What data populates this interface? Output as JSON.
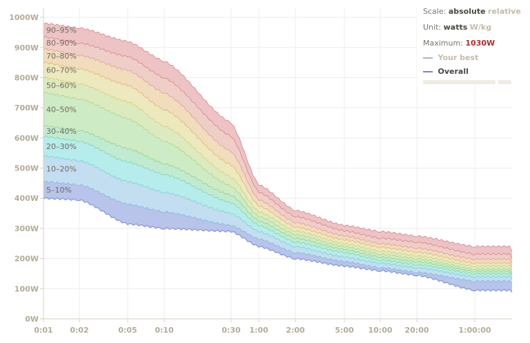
{
  "controls": {
    "scale_label": "Scale:",
    "scale_active": "absolute",
    "scale_alt": "relative",
    "unit_label": "Unit:",
    "unit_active": "watts",
    "unit_alt": "W/kg",
    "max_label": "Maximum:",
    "max_value": "1030W",
    "legend_best": "Your best",
    "legend_overall": "Overall",
    "best_color": "#a7b4c8",
    "overall_color": "#7184c4"
  },
  "chart_data": {
    "type": "area",
    "x_unit": "duration",
    "x_ticks": [
      "0:01",
      "0:02",
      "0:05",
      "0:10",
      "0:30",
      "1:00",
      "2:00",
      "5:00",
      "10:00",
      "20:00",
      "1:00:00"
    ],
    "y_ticks": [
      "0W",
      "100W",
      "200W",
      "300W",
      "400W",
      "500W",
      "600W",
      "700W",
      "800W",
      "900W",
      "1000W"
    ],
    "ylim": [
      0,
      1030
    ],
    "grid": true,
    "band_labels": [
      "5–10%",
      "10–20%",
      "20–30%",
      "30–40%",
      "40–50%",
      "50–60%",
      "60–70%",
      "70–80%",
      "80–90%",
      "90–95%"
    ],
    "band_colors": [
      "#b8c4ea",
      "#c3def0",
      "#b7ecec",
      "#c1ebd1",
      "#cdebc5",
      "#dcebbf",
      "#ebe9bd",
      "#f1dcbc",
      "#f0cec8",
      "#edc3c5"
    ],
    "band_edge_colors": [
      "#8a99d6",
      "#88b8dd",
      "#7fd3d3",
      "#86d7a4",
      "#93d58e",
      "#b3d48a",
      "#d4cf85",
      "#e0b784",
      "#e2a0a0",
      "#d98a8e"
    ],
    "series": [
      {
        "name": "5%",
        "values": [
          400,
          395,
          315,
          300,
          290,
          240,
          200,
          175,
          160,
          145,
          95
        ]
      },
      {
        "name": "10%",
        "values": [
          455,
          445,
          380,
          355,
          310,
          265,
          220,
          190,
          170,
          155,
          125
        ]
      },
      {
        "name": "20%",
        "values": [
          540,
          525,
          455,
          420,
          350,
          290,
          240,
          205,
          185,
          170,
          140
        ]
      },
      {
        "name": "30%",
        "values": [
          605,
          590,
          520,
          480,
          385,
          310,
          255,
          220,
          195,
          180,
          150
        ]
      },
      {
        "name": "40%",
        "values": [
          640,
          625,
          565,
          515,
          410,
          325,
          268,
          230,
          205,
          190,
          158
        ]
      },
      {
        "name": "50%",
        "values": [
          750,
          730,
          665,
          590,
          440,
          340,
          280,
          240,
          215,
          200,
          165
        ]
      },
      {
        "name": "60%",
        "values": [
          800,
          780,
          720,
          640,
          470,
          355,
          292,
          250,
          225,
          210,
          175
        ]
      },
      {
        "name": "70%",
        "values": [
          850,
          830,
          775,
          695,
          510,
          375,
          305,
          262,
          238,
          222,
          185
        ]
      },
      {
        "name": "80%",
        "values": [
          895,
          875,
          825,
          750,
          555,
          395,
          320,
          275,
          250,
          235,
          198
        ]
      },
      {
        "name": "90%",
        "values": [
          935,
          915,
          870,
          800,
          605,
          420,
          340,
          292,
          268,
          255,
          215
        ]
      },
      {
        "name": "95%",
        "values": [
          980,
          965,
          920,
          855,
          650,
          445,
          360,
          310,
          290,
          275,
          240
        ]
      }
    ]
  }
}
